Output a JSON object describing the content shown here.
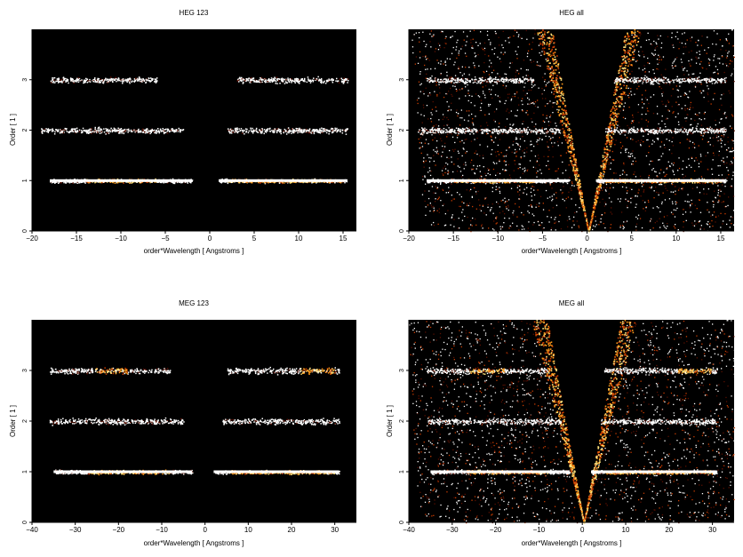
{
  "colors": {
    "background": "#000000",
    "cold": "#5a0f00",
    "warm": "#c83c00",
    "hot": "#ff9a1a",
    "hotter": "#ffe07a",
    "white": "#ffffff"
  },
  "panels": [
    {
      "title": "HEG 123",
      "xlabel": "order*Wavelength [ Angstroms ]",
      "ylabel": "Order [ 1 ]",
      "xticks": [
        "−20",
        "−15",
        "−10",
        "−5",
        "0",
        "5",
        "10",
        "15"
      ],
      "yticks": [
        "0",
        "1",
        "2",
        "3"
      ]
    },
    {
      "title": "HEG all",
      "xlabel": "order*Wavelength [ Angstroms ]",
      "ylabel": "Order [ 1 ]",
      "xticks": [
        "−20",
        "−15",
        "−10",
        "−5",
        "0",
        "5",
        "10",
        "15"
      ],
      "yticks": [
        "0",
        "1",
        "2",
        "3"
      ]
    },
    {
      "title": "MEG 123",
      "xlabel": "order*Wavelength [ Angstroms ]",
      "ylabel": "Order [ 1 ]",
      "xticks": [
        "−40",
        "−30",
        "−20",
        "−10",
        "0",
        "10",
        "20",
        "30"
      ],
      "yticks": [
        "0",
        "1",
        "2",
        "3"
      ]
    },
    {
      "title": "MEG all",
      "xlabel": "order*Wavelength [ Angstroms ]",
      "ylabel": "Order [ 1 ]",
      "xticks": [
        "−40",
        "−30",
        "−20",
        "−10",
        "0",
        "10",
        "20",
        "30"
      ],
      "yticks": [
        "0",
        "1",
        "2",
        "3"
      ]
    }
  ],
  "chart_data": [
    {
      "type": "heatmap",
      "title": "HEG 123",
      "xlabel": "order*Wavelength [ Angstroms ]",
      "ylabel": "Order [ 1 ]",
      "xlim": [
        -20,
        16.5
      ],
      "ylim": [
        0,
        4
      ],
      "xticks": [
        -20,
        -15,
        -10,
        -5,
        0,
        5,
        10,
        15
      ],
      "yticks": [
        0,
        1,
        2,
        3
      ],
      "bands": [
        {
          "order": 1,
          "x_ranges": [
            [
              -18,
              -2
            ],
            [
              1,
              15.5
            ]
          ],
          "bright_ranges": [
            [
              -14,
              -6
            ],
            [
              2,
              15
            ]
          ]
        },
        {
          "order": 2,
          "x_ranges": [
            [
              -19,
              -3
            ],
            [
              2,
              15.5
            ]
          ],
          "bright_ranges": []
        },
        {
          "order": 3,
          "x_ranges": [
            [
              -18,
              -6
            ],
            [
              3,
              15.5
            ]
          ],
          "bright_ranges": []
        }
      ],
      "background_fan": false
    },
    {
      "type": "heatmap",
      "title": "HEG all",
      "xlabel": "order*Wavelength [ Angstroms ]",
      "ylabel": "Order [ 1 ]",
      "xlim": [
        -20,
        16.5
      ],
      "ylim": [
        0,
        4
      ],
      "xticks": [
        -20,
        -15,
        -10,
        -5,
        0,
        5,
        10,
        15
      ],
      "yticks": [
        0,
        1,
        2,
        3
      ],
      "bands": [
        {
          "order": 1,
          "x_ranges": [
            [
              -18,
              -2
            ],
            [
              1,
              15.5
            ]
          ],
          "bright_ranges": [
            [
              -15,
              -6
            ],
            [
              2,
              15
            ]
          ]
        },
        {
          "order": 2,
          "x_ranges": [
            [
              -19,
              -3
            ],
            [
              2,
              15.5
            ]
          ],
          "bright_ranges": []
        },
        {
          "order": 3,
          "x_ranges": [
            [
              -18,
              -6
            ],
            [
              3,
              15.5
            ]
          ],
          "bright_ranges": []
        }
      ],
      "background_fan": true
    },
    {
      "type": "heatmap",
      "title": "MEG 123",
      "xlabel": "order*Wavelength [ Angstroms ]",
      "ylabel": "Order [ 1 ]",
      "xlim": [
        -40,
        35
      ],
      "ylim": [
        0,
        4
      ],
      "xticks": [
        -40,
        -30,
        -20,
        -10,
        0,
        10,
        20,
        30
      ],
      "yticks": [
        0,
        1,
        2,
        3
      ],
      "bands": [
        {
          "order": 1,
          "x_ranges": [
            [
              -35,
              -3
            ],
            [
              2,
              31
            ]
          ],
          "bright_ranges": [
            [
              -27,
              -8
            ],
            [
              5,
              30
            ]
          ]
        },
        {
          "order": 2,
          "x_ranges": [
            [
              -36,
              -5
            ],
            [
              4,
              31
            ]
          ],
          "bright_ranges": []
        },
        {
          "order": 3,
          "x_ranges": [
            [
              -36,
              -8
            ],
            [
              5,
              31
            ]
          ],
          "bright_ranges": [
            [
              -26,
              -18
            ],
            [
              22,
              30
            ]
          ]
        }
      ],
      "background_fan": false
    },
    {
      "type": "heatmap",
      "title": "MEG all",
      "xlabel": "order*Wavelength [ Angstroms ]",
      "ylabel": "Order [ 1 ]",
      "xlim": [
        -40,
        35
      ],
      "ylim": [
        0,
        4
      ],
      "xticks": [
        -40,
        -30,
        -20,
        -10,
        0,
        10,
        20,
        30
      ],
      "yticks": [
        0,
        1,
        2,
        3
      ],
      "bands": [
        {
          "order": 1,
          "x_ranges": [
            [
              -35,
              -3
            ],
            [
              2,
              31
            ]
          ],
          "bright_ranges": [
            [
              -27,
              -8
            ],
            [
              5,
              30
            ]
          ]
        },
        {
          "order": 2,
          "x_ranges": [
            [
              -36,
              -5
            ],
            [
              4,
              31
            ]
          ],
          "bright_ranges": []
        },
        {
          "order": 3,
          "x_ranges": [
            [
              -36,
              -8
            ],
            [
              5,
              31
            ]
          ],
          "bright_ranges": [
            [
              -26,
              -18
            ],
            [
              22,
              30
            ]
          ]
        }
      ],
      "background_fan": true
    }
  ]
}
